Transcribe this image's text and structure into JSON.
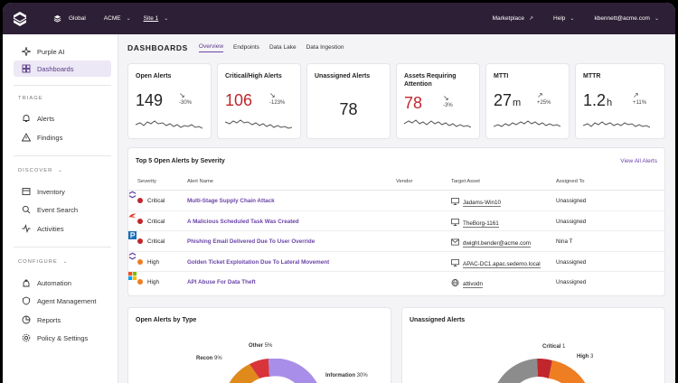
{
  "topbar": {
    "scopes": [
      {
        "label": "Global",
        "icon": "layers-icon"
      },
      {
        "label": "ACME",
        "icon": "none"
      },
      {
        "label": "Site 1",
        "icon": "none"
      }
    ],
    "marketplace": "Marketplace",
    "help": "Help",
    "user": "kbennett@acme.com"
  },
  "sidebar": {
    "top_items": [
      {
        "label": "Purple AI",
        "icon": "purple-ai-icon"
      },
      {
        "label": "Dashboards",
        "icon": "dashboard-icon",
        "active": true
      }
    ],
    "sections": [
      {
        "label": "TRIAGE",
        "items": [
          {
            "label": "Alerts"
          },
          {
            "label": "Findings"
          }
        ]
      },
      {
        "label": "DISCOVER",
        "items": [
          {
            "label": "Inventory"
          },
          {
            "label": "Event Search"
          },
          {
            "label": "Activities"
          }
        ]
      },
      {
        "label": "CONFIGURE",
        "items": [
          {
            "label": "Automation"
          },
          {
            "label": "Agent Management"
          },
          {
            "label": "Reports"
          },
          {
            "label": "Policy & Settings"
          }
        ]
      }
    ]
  },
  "header": {
    "title": "DASHBOARDS",
    "tabs": [
      "Overview",
      "Endpoints",
      "Data Lake",
      "Data Ingestion"
    ],
    "active_tab": "Overview"
  },
  "kpis": [
    {
      "title": "Open Alerts",
      "value": "149",
      "unit": "",
      "delta": "-30%",
      "direction": "down",
      "color": "#222222"
    },
    {
      "title": "Critical/High Alerts",
      "value": "106",
      "unit": "",
      "delta": "-123%",
      "direction": "down",
      "color": "#c0272d"
    },
    {
      "title": "Unassigned Alerts",
      "value": "78",
      "unit": "",
      "delta": "",
      "direction": "none",
      "color": "#222222"
    },
    {
      "title": "Assets Requiring Attention",
      "value": "78",
      "unit": "",
      "delta": "-3%",
      "direction": "down",
      "color": "#c0272d"
    },
    {
      "title": "MTTI",
      "value": "27",
      "unit": "m",
      "delta": "+25%",
      "direction": "up",
      "color": "#222222"
    },
    {
      "title": "MTTR",
      "value": "1.2",
      "unit": "h",
      "delta": "+11%",
      "direction": "up",
      "color": "#222222"
    }
  ],
  "top_alerts": {
    "title": "Top 5 Open Alerts by Severity",
    "view_all": "View All Alerts",
    "columns": [
      "Severity",
      "Alert Name",
      "Vendor",
      "Target Asset",
      "Assigned To"
    ],
    "rows": [
      {
        "severity": "Critical",
        "name": "Multi-Stage Supply Chain Attack",
        "vendor": "sentinelone-logo",
        "asset_icon": "monitor-icon",
        "asset": "Jadams-Win10",
        "assigned": "Unassigned"
      },
      {
        "severity": "Critical",
        "name": "A Malicious Scheduled Task Was Created",
        "vendor": "crowdstrike-logo",
        "asset_icon": "monitor-icon",
        "asset": "TheBorg-1161",
        "assigned": "Unassigned"
      },
      {
        "severity": "Critical",
        "name": "Phishing Email Delivered Due To User Override",
        "vendor": "proofpoint-logo",
        "asset_icon": "mail-icon",
        "asset": "dwight.bender@acme.com",
        "assigned": "Nina T"
      },
      {
        "severity": "High",
        "name": "Golden Ticket Exploitation Due To Lateral Movement",
        "vendor": "sentinelone-logo",
        "asset_icon": "monitor-icon",
        "asset": "APAC-DC1.apac.sedemo.local",
        "assigned": "Unassigned"
      },
      {
        "severity": "High",
        "name": "API Abuse For Data Theft",
        "vendor": "microsoft-logo",
        "asset_icon": "globe-icon",
        "asset": "attivodn",
        "assigned": "Unassigned"
      }
    ]
  },
  "open_by_type": {
    "title": "Open Alerts by Type",
    "slices": [
      {
        "label": "Other",
        "pct": "5%",
        "value": 5,
        "color": "#d9343a"
      },
      {
        "label": "Recon",
        "pct": "9%",
        "value": 9,
        "color": "#e08a1c"
      },
      {
        "label": "Information",
        "pct": "30%",
        "value": 30,
        "color": "#a88ee8"
      }
    ]
  },
  "unassigned": {
    "title": "Unassigned Alerts",
    "slices": [
      {
        "label": "Critical",
        "pct": "1",
        "value": 1,
        "color": "#c0272d"
      },
      {
        "label": "High",
        "pct": "3",
        "value": 3,
        "color": "#ef7d22"
      }
    ]
  }
}
